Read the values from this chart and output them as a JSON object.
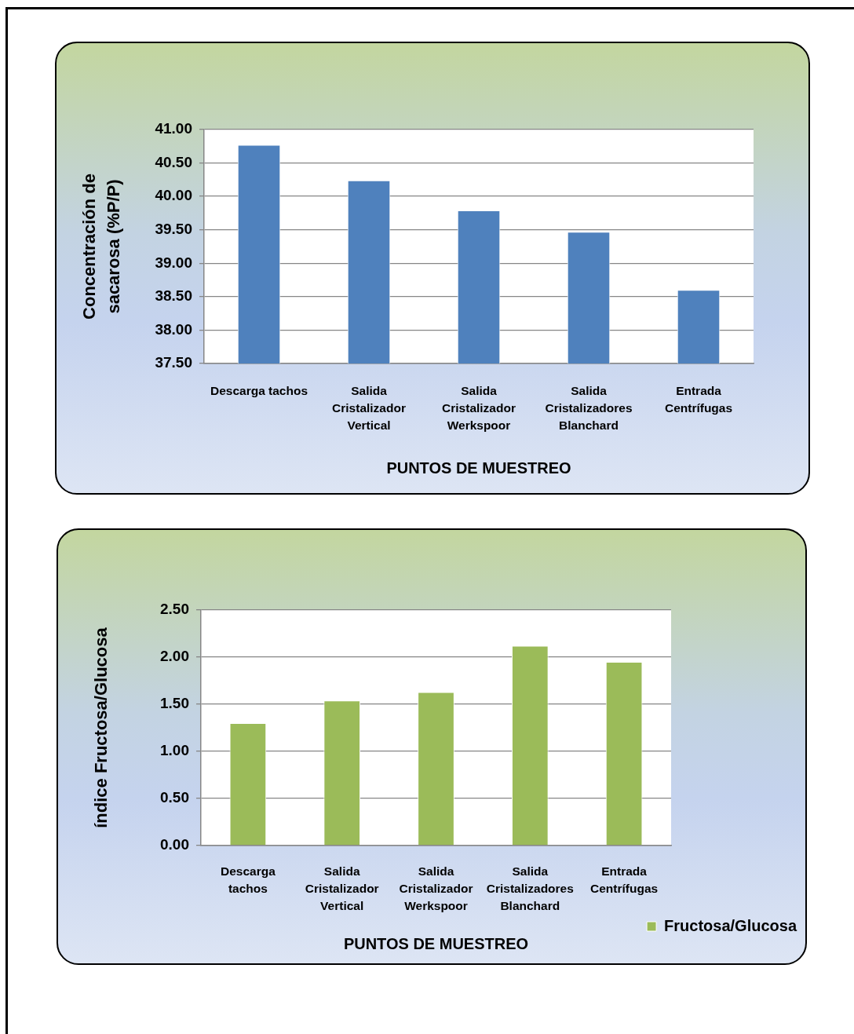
{
  "chart_data": [
    {
      "type": "bar",
      "xlabel": "PUNTOS DE MUESTREO",
      "ylabel": "Concentración de sacarosa (%P/P)",
      "categories": [
        "Descarga tachos",
        "Salida Cristalizador Vertical",
        "Salida Cristalizador Werkspoor",
        "Salida Cristalizadores Blanchard",
        "Entrada Centrífugas"
      ],
      "values": [
        40.77,
        40.24,
        39.79,
        39.47,
        38.6
      ],
      "color": "#4f81bd",
      "ylim": [
        37.5,
        41
      ],
      "yticks": [
        {
          "value": 37.5,
          "label": "37.50"
        },
        {
          "value": 38,
          "label": "38.00"
        },
        {
          "value": 38.5,
          "label": "38.50"
        },
        {
          "value": 39,
          "label": "39.00"
        },
        {
          "value": 39.5,
          "label": "39.50"
        },
        {
          "value": 40,
          "label": "40.00"
        },
        {
          "value": 40.5,
          "label": "40.50"
        },
        {
          "value": 41,
          "label": "41.00"
        }
      ],
      "grid": "y",
      "legend": false
    },
    {
      "type": "bar",
      "xlabel": "PUNTOS DE MUESTREO",
      "ylabel": "índice Fructosa/Glucosa",
      "categories": [
        "Descarga tachos",
        "Salida Cristalizador Vertical",
        "Salida Cristalizador Werkspoor",
        "Salida Cristalizadores Blanchard",
        "Entrada Centrífugas"
      ],
      "series": [
        {
          "name": "Fructosa/Glucosa",
          "color": "#9bbb59",
          "values": [
            1.3,
            1.54,
            1.63,
            2.12,
            1.95
          ]
        }
      ],
      "ylim": [
        0,
        2.5
      ],
      "yticks": [
        {
          "value": 0,
          "label": "0.00"
        },
        {
          "value": 0.5,
          "label": "0.50"
        },
        {
          "value": 1,
          "label": "1.00"
        },
        {
          "value": 1.5,
          "label": "1.50"
        },
        {
          "value": 2,
          "label": "2.00"
        },
        {
          "value": 2.5,
          "label": "2.50"
        }
      ],
      "grid": "y",
      "legend": "bottom right"
    }
  ]
}
